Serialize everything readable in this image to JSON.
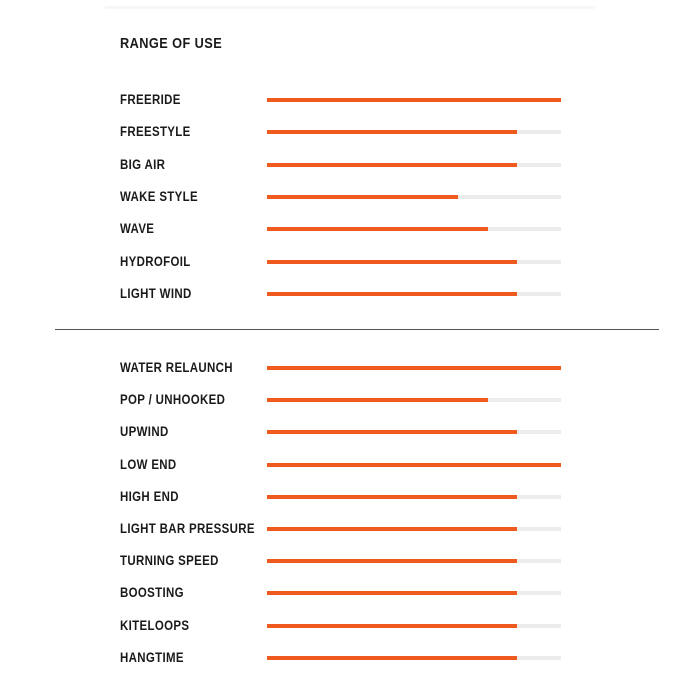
{
  "accent_color": "#f05a1e",
  "track_color": "#ececec",
  "title": "RANGE OF USE",
  "range_of_use": [
    {
      "label": "FREERIDE",
      "value": 1.0
    },
    {
      "label": "FREESTYLE",
      "value": 0.85
    },
    {
      "label": "BIG AIR",
      "value": 0.85
    },
    {
      "label": "WAKE STYLE",
      "value": 0.65
    },
    {
      "label": "WAVE",
      "value": 0.75
    },
    {
      "label": "HYDROFOIL",
      "value": 0.85
    },
    {
      "label": "LIGHT WIND",
      "value": 0.85
    }
  ],
  "performance": [
    {
      "label": "WATER RELAUNCH",
      "value": 1.0
    },
    {
      "label": "POP / UNHOOKED",
      "value": 0.75
    },
    {
      "label": "UPWIND",
      "value": 0.85
    },
    {
      "label": "LOW END",
      "value": 1.0
    },
    {
      "label": "HIGH END",
      "value": 0.85
    },
    {
      "label": "LIGHT BAR PRESSURE",
      "value": 0.85
    },
    {
      "label": "TURNING SPEED",
      "value": 0.85
    },
    {
      "label": "BOOSTING",
      "value": 0.85
    },
    {
      "label": "KITELOOPS",
      "value": 0.85
    },
    {
      "label": "HANGTIME",
      "value": 0.85
    }
  ]
}
